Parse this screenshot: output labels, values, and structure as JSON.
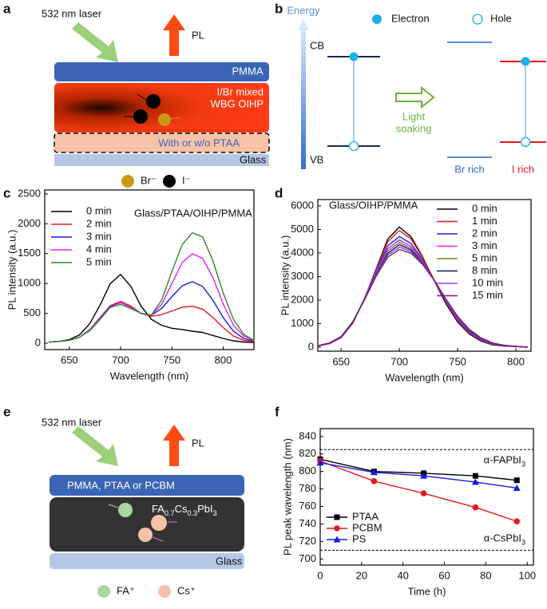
{
  "panel_labels": [
    "a",
    "b",
    "c",
    "d",
    "e",
    "f"
  ],
  "panel_a": {
    "laser": "532 nm laser",
    "pl": "PL",
    "top_layer": "PMMA",
    "active_line1": "I/Br mixed",
    "active_line2": "WBG OIHP",
    "htl_layer": "With or w/o PTAA",
    "substrate": "Glass",
    "legend_br": "Br⁻",
    "legend_i": "I⁻"
  },
  "panel_b": {
    "axis": "Energy",
    "electron": "Electron",
    "hole": "Hole",
    "cb": "CB",
    "vb": "VB",
    "process_line1": "Light",
    "process_line2": "soaking",
    "br_rich": "Br rich",
    "i_rich": "I rich"
  },
  "panel_e": {
    "laser": "532 nm laser",
    "pl": "PL",
    "top_layer": "PMMA, PTAA or PCBM",
    "active_layer": [
      "FA",
      "0.7",
      "Cs",
      "0.3",
      "PbI",
      "3"
    ],
    "substrate": "Glass",
    "legend_fa": "FA⁺",
    "legend_cs": "Cs⁺"
  },
  "chart_data": [
    {
      "type": "line",
      "annotation": "Glass/PTAA/OIHP/PMMA",
      "x_label": "Wavelength (nm)",
      "y_label": "PL intensity (a.u.)",
      "legend": "upper left",
      "x": [
        630,
        640,
        650,
        660,
        670,
        680,
        690,
        700,
        710,
        720,
        730,
        740,
        750,
        760,
        770,
        780,
        790,
        800,
        810,
        820,
        830
      ],
      "series": [
        {
          "name": "0 min",
          "color": "#000000",
          "values": [
            20,
            30,
            60,
            140,
            330,
            640,
            1000,
            1150,
            950,
            620,
            400,
            300,
            250,
            230,
            200,
            180,
            130,
            80,
            40,
            20,
            10
          ]
        },
        {
          "name": "2 min",
          "color": "#e8161b",
          "values": [
            20,
            30,
            50,
            100,
            230,
            430,
            630,
            700,
            620,
            500,
            450,
            480,
            540,
            600,
            620,
            570,
            430,
            260,
            120,
            50,
            20
          ]
        },
        {
          "name": "3 min",
          "color": "#1a1ae6",
          "values": [
            20,
            30,
            50,
            100,
            220,
            420,
            620,
            680,
            600,
            500,
            470,
            580,
            780,
            960,
            1030,
            950,
            720,
            430,
            200,
            80,
            30
          ]
        },
        {
          "name": "4 min",
          "color": "#f01af0",
          "values": [
            20,
            30,
            50,
            100,
            220,
            410,
            610,
            680,
            600,
            500,
            470,
            650,
            1000,
            1350,
            1500,
            1420,
            1100,
            660,
            300,
            120,
            40
          ]
        },
        {
          "name": "5 min",
          "color": "#2a8a2a",
          "values": [
            20,
            30,
            50,
            100,
            210,
            400,
            600,
            650,
            580,
            500,
            470,
            720,
            1200,
            1650,
            1850,
            1780,
            1380,
            840,
            400,
            150,
            50
          ]
        }
      ],
      "xlim": [
        626,
        830
      ],
      "ylim": [
        -107,
        2566
      ],
      "xticks": [
        650,
        700,
        750,
        800
      ],
      "yticks": [
        0,
        500,
        1000,
        1500,
        2000,
        2500
      ]
    },
    {
      "type": "line",
      "annotation": "Glass/OIHP/PMMA",
      "x_label": "Wavelength (nm)",
      "y_label": "PL intensity (a.u.)",
      "legend": "upper right",
      "x": [
        630,
        640,
        650,
        660,
        670,
        680,
        690,
        700,
        710,
        720,
        730,
        740,
        750,
        760,
        770,
        780,
        790,
        800,
        810
      ],
      "series": [
        {
          "name": "0 min",
          "color": "#000000",
          "values": [
            50,
            150,
            410,
            1020,
            2040,
            3320,
            4590,
            5100,
            4690,
            3830,
            2810,
            1840,
            1070,
            560,
            260,
            100,
            50,
            25,
            0
          ]
        },
        {
          "name": "1 min",
          "color": "#e8161b",
          "values": [
            50,
            150,
            420,
            1040,
            2060,
            3300,
            4480,
            4950,
            4600,
            3800,
            2850,
            1900,
            1120,
            600,
            280,
            120,
            50,
            25,
            0
          ]
        },
        {
          "name": "2 min",
          "color": "#1a1ae6",
          "values": [
            50,
            160,
            420,
            1050,
            2050,
            3250,
            4300,
            4700,
            4400,
            3700,
            2820,
            1920,
            1150,
            630,
            300,
            130,
            60,
            30,
            0
          ]
        },
        {
          "name": "3 min",
          "color": "#f01af0",
          "values": [
            50,
            160,
            430,
            1060,
            2050,
            3200,
            4180,
            4550,
            4280,
            3650,
            2820,
            1940,
            1180,
            650,
            320,
            140,
            60,
            30,
            0
          ]
        },
        {
          "name": "5 min",
          "color": "#6b8e23",
          "values": [
            60,
            170,
            440,
            1070,
            2040,
            3150,
            4080,
            4450,
            4200,
            3620,
            2830,
            1970,
            1220,
            680,
            340,
            150,
            70,
            30,
            0
          ]
        },
        {
          "name": "8 min",
          "color": "#0b1a6e",
          "values": [
            60,
            170,
            440,
            1070,
            2030,
            3100,
            3990,
            4350,
            4130,
            3580,
            2840,
            2000,
            1250,
            700,
            360,
            160,
            70,
            30,
            0
          ]
        },
        {
          "name": "10 min",
          "color": "#9a3cf0",
          "values": [
            60,
            180,
            450,
            1080,
            2020,
            3060,
            3910,
            4250,
            4060,
            3550,
            2840,
            2020,
            1280,
            730,
            380,
            170,
            80,
            30,
            0
          ]
        },
        {
          "name": "15 min",
          "color": "#7a1f7a",
          "values": [
            60,
            180,
            450,
            1080,
            2000,
            3010,
            3820,
            4150,
            3990,
            3510,
            2840,
            2040,
            1310,
            760,
            400,
            180,
            80,
            40,
            0
          ]
        }
      ],
      "xlim": [
        630,
        813
      ],
      "ylim": [
        -170,
        6270
      ],
      "xticks": [
        650,
        700,
        750,
        800
      ],
      "yticks": [
        0,
        1000,
        2000,
        3000,
        4000,
        5000,
        6000
      ]
    },
    {
      "type": "line",
      "x_label": "Time (h)",
      "y_label": "PL peak wavelength (nm)",
      "legend": "lower left",
      "x": [
        0,
        26,
        50,
        75,
        95
      ],
      "series": [
        {
          "name": "PTAA",
          "color": "#000000",
          "marker": "square",
          "values": [
            814,
            800,
            798,
            795,
            790
          ]
        },
        {
          "name": "PCBM",
          "color": "#e8161b",
          "marker": "circle",
          "values": [
            812,
            789,
            775,
            759,
            743
          ]
        },
        {
          "name": "PS",
          "color": "#1a1ae6",
          "marker": "triangle",
          "values": [
            810,
            799,
            795,
            788,
            781
          ]
        }
      ],
      "reference_lines": [
        {
          "value": 825,
          "label": [
            "α-FAPbI",
            "3"
          ]
        },
        {
          "value": 710,
          "label": [
            "α-CsPbI",
            "3"
          ]
        }
      ],
      "xlim": [
        0,
        103
      ],
      "ylim": [
        693,
        849
      ],
      "xticks": [
        0,
        20,
        40,
        60,
        80,
        100
      ],
      "yticks": [
        700,
        720,
        740,
        760,
        780,
        800,
        820,
        840
      ]
    }
  ]
}
